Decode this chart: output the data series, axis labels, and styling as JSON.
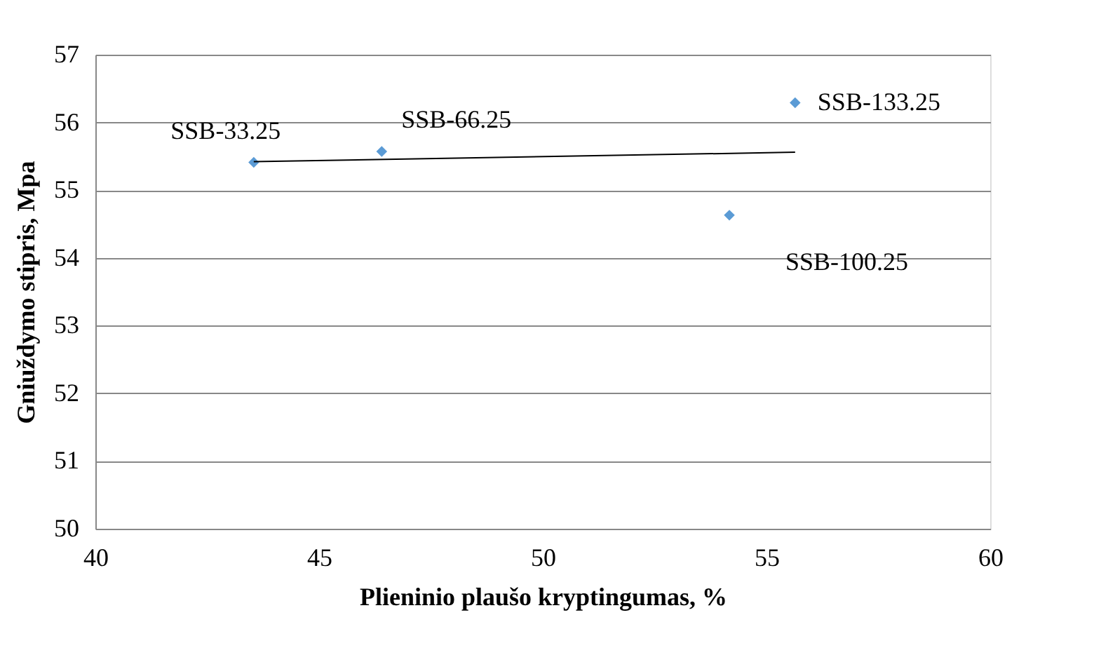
{
  "chart_data": {
    "type": "scatter",
    "xlabel": "Plieninio plaušo kryptingumas, %",
    "ylabel": "Gniuždymo stipris, Mpa",
    "series": [
      {
        "color": "#5b9bd5",
        "marker": "diamond",
        "x": [
          43.54,
          46.4,
          54.17,
          55.64
        ],
        "values": [
          55.41,
          55.57,
          54.63,
          56.29
        ]
      },
      {
        "type": "line",
        "color": "#000000",
        "line_style": "solid",
        "x": [
          43.54,
          55.64
        ],
        "values": [
          55.42,
          55.56
        ]
      }
    ],
    "annotations": [
      {
        "text": "SSB-33.25",
        "x": 43.54,
        "y": 55.41
      },
      {
        "text": "SSB-66.25",
        "x": 46.4,
        "y": 55.57
      },
      {
        "text": "SSB-100.25",
        "x": 54.17,
        "y": 54.63
      },
      {
        "text": "SSB-133.25",
        "x": 55.64,
        "y": 56.29
      }
    ],
    "xlim": [
      40,
      60
    ],
    "xticks": [
      40,
      45,
      50,
      55,
      60
    ],
    "ylim": [
      50,
      57
    ],
    "yticks": [
      50,
      51,
      52,
      53,
      54,
      55,
      56,
      57
    ],
    "grid": "y"
  }
}
